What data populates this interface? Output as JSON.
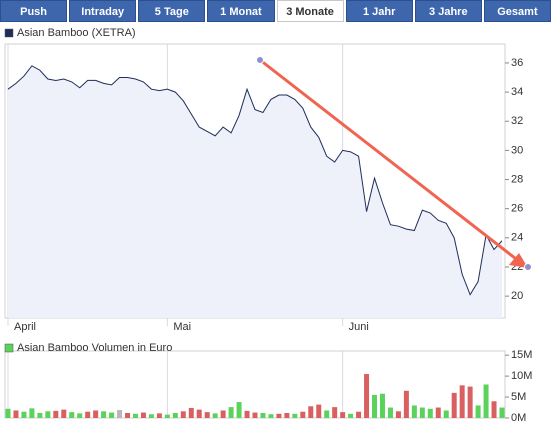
{
  "tabs": [
    "Push",
    "Intraday",
    "5 Tage",
    "1 Monat",
    "3 Monate",
    "1 Jahr",
    "3 Jahre",
    "Gesamt"
  ],
  "chart_data": [
    {
      "type": "line",
      "categories": [
        "April",
        null,
        null,
        null,
        null,
        null,
        null,
        null,
        null,
        null,
        null,
        null,
        null,
        null,
        null,
        null,
        null,
        null,
        null,
        null,
        "Mai",
        null,
        null,
        null,
        null,
        null,
        null,
        null,
        null,
        null,
        null,
        null,
        null,
        null,
        null,
        null,
        null,
        null,
        null,
        null,
        null,
        null,
        "Juni",
        null,
        null,
        null,
        null,
        null,
        null,
        null,
        null,
        null,
        null,
        null,
        null,
        null,
        null,
        null,
        null,
        null,
        null,
        null,
        null
      ],
      "series": [
        {
          "name": "Asian Bamboo (XETRA)",
          "color": "#1f2d5a",
          "values": [
            34.2,
            34.6,
            35.1,
            35.8,
            35.5,
            34.9,
            34.8,
            34.9,
            34.7,
            34.3,
            34.8,
            34.8,
            34.6,
            34.5,
            35.0,
            35.0,
            34.9,
            34.7,
            34.2,
            34.1,
            34.2,
            34.0,
            33.4,
            32.5,
            31.6,
            31.3,
            31.0,
            31.6,
            31.2,
            32.4,
            34.2,
            32.8,
            32.6,
            33.5,
            33.8,
            33.8,
            33.5,
            32.9,
            31.6,
            30.9,
            29.6,
            29.2,
            30.0,
            29.9,
            29.6,
            25.8,
            28.1,
            26.4,
            24.9,
            24.8,
            24.6,
            24.5,
            25.9,
            25.7,
            25.2,
            25.0,
            24.0,
            21.5,
            20.1,
            21.0,
            24.2,
            23.2,
            23.8
          ]
        }
      ],
      "ylim": [
        18.5,
        37.3
      ],
      "yticks": [
        20,
        22,
        24,
        26,
        28,
        30,
        32,
        34,
        36
      ],
      "fill": "#eef0fa",
      "grid": true
    },
    {
      "type": "bar",
      "series": [
        {
          "name": "Asian Bamboo Volumen in Euro",
          "color": "#5bd25b",
          "values": [
            2200000,
            1800000,
            1500000,
            2300000,
            1200000,
            1600000,
            1700000,
            2000000,
            1400000,
            1100000,
            1500000,
            1800000,
            1600000,
            1300000,
            1900000,
            1200000,
            1000000,
            1300000,
            900000,
            1100000,
            800000,
            1200000,
            1600000,
            2400000,
            2000000,
            1400000,
            1100000,
            1800000,
            2600000,
            3800000,
            1700000,
            1300000,
            1200000,
            900000,
            1000000,
            1200000,
            1000000,
            1500000,
            2800000,
            3200000,
            1800000,
            2600000,
            1400000,
            1000000,
            1500000,
            10500000,
            5500000,
            5800000,
            2500000,
            1600000,
            6500000,
            3000000,
            2500000,
            2200000,
            2500000,
            1800000,
            6000000,
            7800000,
            7500000,
            3000000,
            8000000,
            4000000,
            2500000
          ],
          "colors": [
            "#5bd25b",
            "#d96060",
            "#5bd25b",
            "#5bd25b",
            "#5bd25b",
            "#5bd25b",
            "#d96060",
            "#d96060",
            "#5bd25b",
            "#5bd25b",
            "#d96060",
            "#d96060",
            "#5bd25b",
            "#5bd25b",
            "#b8b8b8",
            "#d96060",
            "#5bd25b",
            "#d96060",
            "#5bd25b",
            "#d96060",
            "#5bd25b",
            "#5bd25b",
            "#d96060",
            "#d96060",
            "#d96060",
            "#d96060",
            "#5bd25b",
            "#d96060",
            "#5bd25b",
            "#5bd25b",
            "#d96060",
            "#d96060",
            "#5bd25b",
            "#5bd25b",
            "#d96060",
            "#d96060",
            "#5bd25b",
            "#d96060",
            "#d96060",
            "#d96060",
            "#5bd25b",
            "#d96060",
            "#d96060",
            "#5bd25b",
            "#d96060",
            "#d96060",
            "#5bd25b",
            "#5bd25b",
            "#5bd25b",
            "#d96060",
            "#d96060",
            "#5bd25b",
            "#5bd25b",
            "#5bd25b",
            "#d96060",
            "#5bd25b",
            "#d96060",
            "#d96060",
            "#d96060",
            "#5bd25b",
            "#5bd25b",
            "#d96060",
            "#5bd25b"
          ]
        }
      ],
      "ylim": [
        0,
        16000000
      ],
      "yticks": [
        {
          "value": 0,
          "label": "0M"
        },
        {
          "value": 5000000,
          "label": "5M"
        },
        {
          "value": 10000000,
          "label": "10M"
        },
        {
          "value": 15000000,
          "label": "15M"
        }
      ]
    }
  ]
}
